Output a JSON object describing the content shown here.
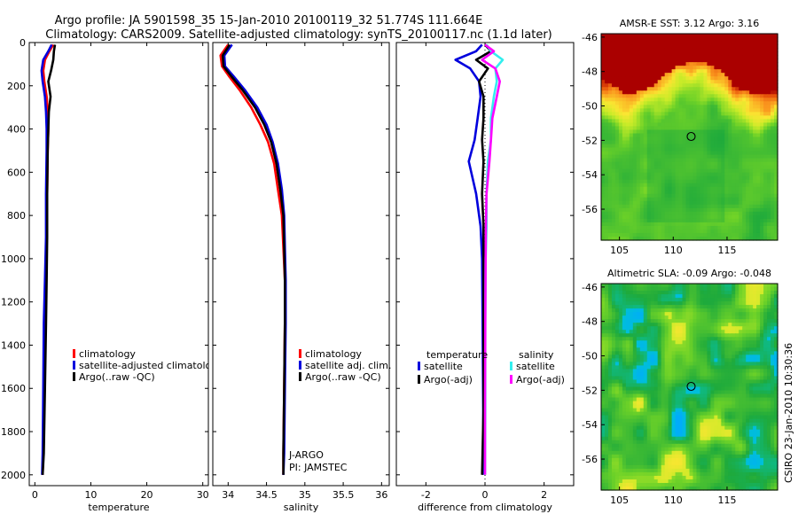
{
  "header": {
    "title_line1": "Argo profile: JA 5901598_35 15-Jan-2010 20100119_32 51.774S 111.664E",
    "title_line2": "Climatology: CARS2009. Satellite-adjusted climatology: synTS_20100117.nc (1.1d later)"
  },
  "footer_text": "CSIRO 23-Jan-2010 10:30:36",
  "colors": {
    "red": "#ff0000",
    "blue": "#0000dd",
    "black": "#000000",
    "cyan": "#33eeee",
    "magenta": "#ff00ff"
  },
  "chart_data": [
    {
      "type": "line",
      "name": "temperature",
      "xlabel": "temperature",
      "xlim": [
        -1,
        31
      ],
      "ylim": [
        0,
        2050
      ],
      "yreversed": true,
      "xticks": [
        "0",
        "10",
        "20",
        "30"
      ],
      "xtick_values": [
        0,
        10,
        20,
        30
      ],
      "yticks": [
        "0",
        "200",
        "400",
        "600",
        "800",
        "1000",
        "1200",
        "1400",
        "1600",
        "1800",
        "2000"
      ],
      "ytick_values": [
        0,
        200,
        400,
        600,
        800,
        1000,
        1200,
        1400,
        1600,
        1800,
        2000
      ],
      "legend": [
        "climatology",
        "satellite-adjusted climatology",
        "Argo(..raw -QC)"
      ],
      "series": [
        {
          "name": "climatology",
          "color": "red",
          "x": [
            3.3,
            2.6,
            1.8,
            1.5,
            1.7,
            2.1,
            2.3,
            2.4,
            2.3,
            2.2,
            2.1,
            2.0,
            1.8,
            1.6,
            1.5,
            1.4
          ],
          "y": [
            10,
            40,
            80,
            130,
            180,
            250,
            320,
            400,
            500,
            700,
            900,
            1100,
            1300,
            1600,
            1900,
            2000
          ]
        },
        {
          "name": "satellite-adjusted climatology",
          "color": "blue",
          "x": [
            3.0,
            2.4,
            1.5,
            1.2,
            1.4,
            1.8,
            2.0,
            2.1,
            2.1,
            2.0,
            2.0,
            1.8,
            1.6,
            1.5,
            1.4,
            1.3
          ],
          "y": [
            10,
            40,
            80,
            130,
            180,
            250,
            320,
            400,
            500,
            700,
            900,
            1100,
            1300,
            1600,
            1900,
            2000
          ]
        },
        {
          "name": "Argo(..raw -QC)",
          "color": "black",
          "x": [
            3.6,
            3.4,
            3.3,
            2.9,
            2.4,
            2.8,
            2.5,
            2.4,
            2.3,
            2.2,
            2.2,
            2.1,
            2.0,
            1.8,
            1.6,
            1.4
          ],
          "y": [
            10,
            40,
            80,
            130,
            180,
            250,
            320,
            400,
            500,
            700,
            900,
            1100,
            1300,
            1600,
            1900,
            2000
          ]
        }
      ]
    },
    {
      "type": "line",
      "name": "salinity",
      "xlabel": "salinity",
      "xlim": [
        33.8,
        36.1
      ],
      "ylim": [
        0,
        2050
      ],
      "yreversed": true,
      "xticks": [
        "34",
        "34.5",
        "35",
        "35.5",
        "36"
      ],
      "xtick_values": [
        34,
        34.5,
        35,
        35.5,
        36
      ],
      "legend": [
        "climatology",
        "satellite adj. clim.",
        "Argo(..raw -QC)"
      ],
      "annotations": [
        "J-ARGO",
        "PI: JAMSTEC"
      ],
      "series": [
        {
          "name": "climatology",
          "color": "red",
          "x": [
            34.0,
            33.9,
            33.92,
            34.02,
            34.15,
            34.3,
            34.42,
            34.52,
            34.6,
            34.65,
            34.7,
            34.72,
            34.74,
            34.74,
            34.73,
            34.72,
            34.72
          ],
          "y": [
            10,
            60,
            110,
            160,
            220,
            300,
            380,
            460,
            560,
            680,
            800,
            950,
            1100,
            1300,
            1600,
            1900,
            2000
          ]
        },
        {
          "name": "satellite adj. clim.",
          "color": "blue",
          "x": [
            34.05,
            33.95,
            33.96,
            34.08,
            34.22,
            34.38,
            34.5,
            34.58,
            34.65,
            34.7,
            34.73,
            34.74,
            34.75,
            34.75,
            34.74,
            34.73,
            34.72
          ],
          "y": [
            10,
            60,
            110,
            160,
            220,
            300,
            380,
            460,
            560,
            680,
            800,
            950,
            1100,
            1300,
            1600,
            1900,
            2000
          ]
        },
        {
          "name": "Argo(..raw -QC)",
          "color": "black",
          "x": [
            34.02,
            33.93,
            33.94,
            34.05,
            34.19,
            34.35,
            34.47,
            34.56,
            34.63,
            34.68,
            34.72,
            34.73,
            34.74,
            34.74,
            34.73,
            34.72,
            34.72
          ],
          "y": [
            10,
            60,
            110,
            160,
            220,
            300,
            380,
            460,
            560,
            680,
            800,
            950,
            1100,
            1300,
            1600,
            1900,
            2000
          ]
        }
      ]
    },
    {
      "type": "line",
      "name": "difference",
      "xlabel": "difference from climatology",
      "xlim": [
        -3,
        3
      ],
      "ylim": [
        0,
        2050
      ],
      "yreversed": true,
      "xticks": [
        "-2",
        "0",
        "2"
      ],
      "xtick_values": [
        -2,
        0,
        2
      ],
      "legend_headers": [
        "temperature",
        "salinity"
      ],
      "legend": [
        "satellite",
        "Argo(-adj)",
        "satellite",
        "Argo(-adj)"
      ],
      "series": [
        {
          "name": "temperature satellite",
          "color": "blue",
          "x": [
            -0.1,
            -0.3,
            -1.0,
            -0.5,
            -0.2,
            -0.15,
            -0.25,
            -0.35,
            -0.55,
            -0.3,
            -0.15,
            -0.1,
            -0.08,
            -0.06,
            -0.05
          ],
          "y": [
            10,
            40,
            80,
            120,
            180,
            250,
            350,
            450,
            550,
            700,
            850,
            1000,
            1300,
            1700,
            2000
          ]
        },
        {
          "name": "temperature Argo(-adj)",
          "color": "black",
          "x": [
            0.0,
            0.2,
            -0.3,
            0.1,
            -0.2,
            -0.05,
            -0.05,
            -0.1,
            -0.05,
            -0.1,
            -0.05,
            -0.05,
            -0.05,
            -0.05,
            -0.1
          ],
          "y": [
            10,
            40,
            80,
            120,
            180,
            250,
            350,
            450,
            550,
            700,
            850,
            1000,
            1300,
            1700,
            2000
          ]
        },
        {
          "name": "salinity satellite",
          "color": "cyan",
          "x": [
            0.05,
            0.2,
            0.6,
            0.35,
            0.4,
            0.3,
            0.2,
            0.2,
            0.1,
            0.05,
            0.05,
            0.02,
            0.01,
            0.01,
            0.0
          ],
          "y": [
            10,
            40,
            80,
            120,
            180,
            250,
            350,
            450,
            550,
            700,
            850,
            1000,
            1300,
            1700,
            2000
          ]
        },
        {
          "name": "salinity Argo(-adj)",
          "color": "magenta",
          "x": [
            0.0,
            0.3,
            -0.1,
            0.35,
            0.5,
            0.4,
            0.25,
            0.2,
            0.15,
            0.05,
            0.03,
            0.02,
            0.01,
            0.0,
            0.0
          ],
          "y": [
            10,
            40,
            80,
            120,
            180,
            250,
            350,
            450,
            550,
            700,
            850,
            1000,
            1300,
            1700,
            2000
          ]
        }
      ]
    },
    {
      "type": "heatmap",
      "name": "sst-map",
      "title": "AMSR-E SST: 3.12 Argo: 3.16",
      "xlim": [
        103.3,
        119.7
      ],
      "ylim": [
        -57.8,
        -45.8
      ],
      "xticks": [
        "105",
        "110",
        "115"
      ],
      "xtick_values": [
        105,
        110,
        115
      ],
      "yticks": [
        "-46",
        "-48",
        "-50",
        "-52",
        "-54",
        "-56"
      ],
      "ytick_values": [
        -46,
        -48,
        -50,
        -52,
        -54,
        -56
      ],
      "marker": {
        "lon": 111.664,
        "lat": -51.774
      }
    },
    {
      "type": "heatmap",
      "name": "sla-map",
      "title": "Altimetric SLA: -0.09 Argo: -0.048",
      "xlim": [
        103.3,
        119.7
      ],
      "ylim": [
        -57.8,
        -45.8
      ],
      "xticks": [
        "105",
        "110",
        "115"
      ],
      "xtick_values": [
        105,
        110,
        115
      ],
      "yticks": [
        "-46",
        "-48",
        "-50",
        "-52",
        "-54",
        "-56"
      ],
      "ytick_values": [
        -46,
        -48,
        -50,
        -52,
        -54,
        -56
      ],
      "marker": {
        "lon": 111.664,
        "lat": -51.774
      }
    }
  ]
}
